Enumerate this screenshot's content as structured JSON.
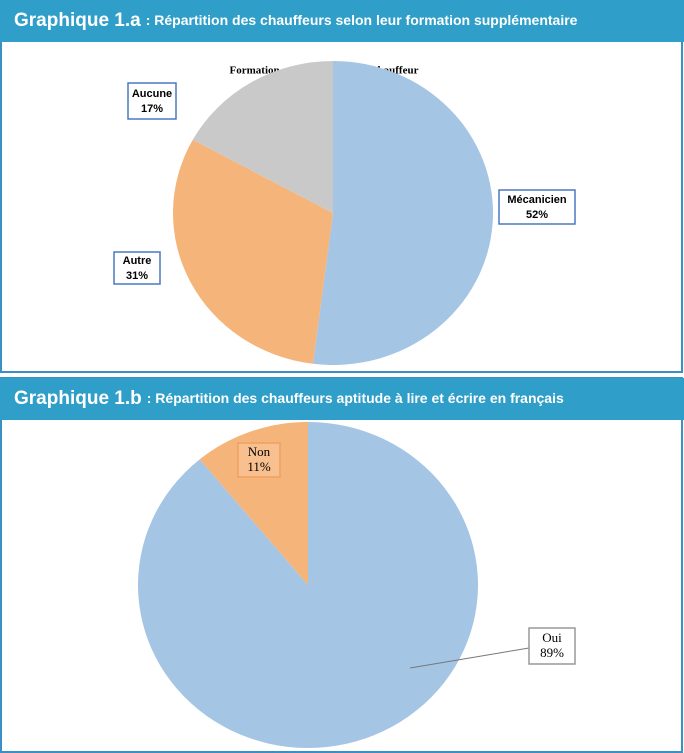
{
  "chart_data": [
    {
      "type": "pie",
      "heading": "Graphique 1.a",
      "title": ": Répartition des chauffeurs selon leur formation supplémentaire",
      "chart_title": "Formation supplémentaire du chauffeur",
      "categories": [
        "Mécanicien",
        "Autre",
        "Aucune"
      ],
      "values": [
        52,
        31,
        17
      ],
      "value_labels": [
        "52%",
        "31%",
        "17%"
      ],
      "colors": [
        "#a5c5e5",
        "#f5b47a",
        "#c9c9c9"
      ]
    },
    {
      "type": "pie",
      "heading": "Graphique 1.b",
      "title": ": Répartition des chauffeurs aptitude à lire et écrire en français",
      "categories": [
        "Oui",
        "Non"
      ],
      "values": [
        89,
        11
      ],
      "value_labels": [
        "89%",
        "11%"
      ],
      "colors": [
        "#a5c5e5",
        "#f5b47a"
      ]
    }
  ]
}
